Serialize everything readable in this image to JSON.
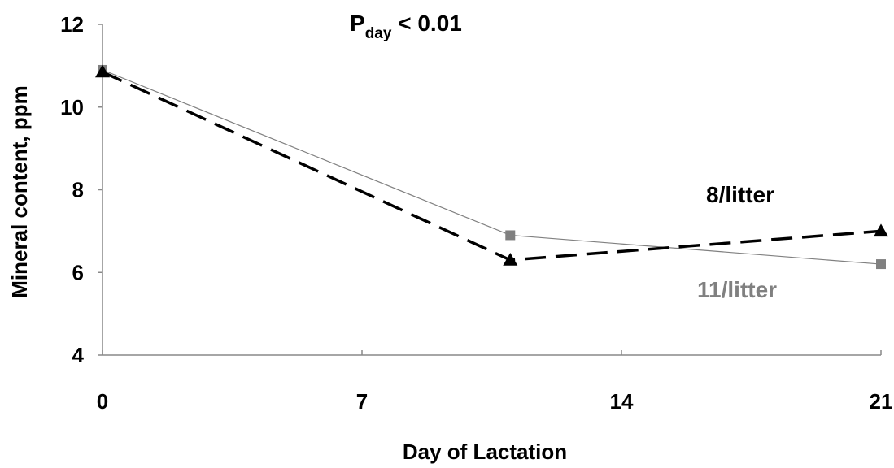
{
  "chart_data": {
    "type": "line",
    "xlabel": "Day of Lactation",
    "ylabel": "Mineral content, ppm",
    "xlim": [
      0,
      21
    ],
    "ylim": [
      4,
      12
    ],
    "xticks": [
      0,
      7,
      14,
      21
    ],
    "yticks": [
      4,
      6,
      8,
      10,
      12
    ],
    "grid": false,
    "annotation": {
      "main": "P",
      "sub": "day",
      "rest": " < 0.01"
    },
    "series": [
      {
        "name": "8/litter",
        "x": [
          0,
          11,
          21
        ],
        "y": [
          10.85,
          6.3,
          7.0
        ],
        "color": "#000000",
        "line_style": "dashed",
        "marker": "triangle"
      },
      {
        "name": "11/litter",
        "x": [
          0,
          11,
          21
        ],
        "y": [
          10.9,
          6.9,
          6.2
        ],
        "color": "#808080",
        "line_style": "solid",
        "marker": "square"
      }
    ]
  }
}
